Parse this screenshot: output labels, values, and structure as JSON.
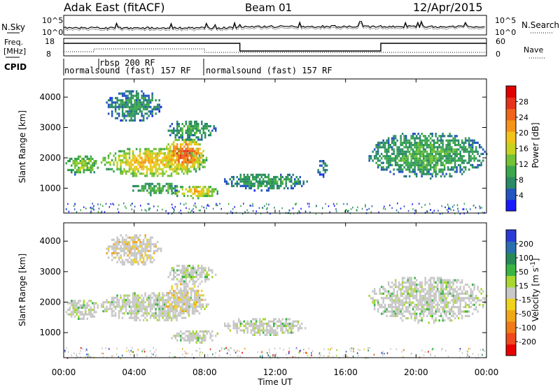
{
  "header": {
    "station": "Adak East (fitACF)",
    "beam": "Beam 01",
    "date": "12/Apr/2015"
  },
  "noise_panel": {
    "left_label": "N.Sky",
    "right_label": "N.Search",
    "tick_top": "10^5",
    "tick_bottom": "10^0"
  },
  "freq_panel": {
    "left_label_line1": "Freq.",
    "left_label_line2": "[MHz]",
    "right_label": "Nave",
    "left_ticks": [
      "18",
      "8"
    ],
    "right_ticks": [
      "60",
      "0"
    ]
  },
  "cpid_panel": {
    "label": "CPID",
    "entries": [
      {
        "text": "rbsp 200 RF",
        "start_hour": 1.5
      },
      {
        "text": "normalsound (fast) 157 RF",
        "start_hour": 0.0
      },
      {
        "text": "normalsound (fast) 157 RF",
        "start_hour": 7.8
      }
    ]
  },
  "chart_data": [
    {
      "type": "heatmap",
      "quantity": "Power",
      "ylabel": "Slant Range [km]",
      "xlabel": "Time UT",
      "ylim": [
        180,
        4600
      ],
      "yticks": [
        1000,
        2000,
        3000,
        4000
      ],
      "xlim": [
        0,
        24
      ],
      "colorbar": {
        "label": "Power [dB]",
        "range": [
          0,
          32
        ],
        "ticks": [
          "4",
          "8",
          "12",
          "16",
          "20",
          "24",
          "28"
        ],
        "colors": [
          "#1a1aff",
          "#2255c0",
          "#2a8a66",
          "#3aa74a",
          "#74c236",
          "#c6d21f",
          "#f2c41a",
          "#f59418",
          "#f0651c",
          "#e8311c",
          "#e00000"
        ]
      },
      "echo_regions": [
        {
          "t0": 0.0,
          "t1": 2.0,
          "r0": 1450,
          "r1": 2150,
          "level": 11
        },
        {
          "t0": 2.0,
          "t1": 8.2,
          "r0": 1400,
          "r1": 2400,
          "level": 16
        },
        {
          "t0": 5.6,
          "t1": 8.0,
          "r0": 1600,
          "r1": 2700,
          "level": 21
        },
        {
          "t0": 2.3,
          "t1": 5.5,
          "r0": 3200,
          "r1": 4300,
          "level": 6
        },
        {
          "t0": 5.8,
          "t1": 8.6,
          "r0": 2600,
          "r1": 3300,
          "level": 7
        },
        {
          "t0": 6.0,
          "t1": 8.8,
          "r0": 700,
          "r1": 1150,
          "level": 15
        },
        {
          "t0": 3.8,
          "t1": 6.5,
          "r0": 800,
          "r1": 1250,
          "level": 9
        },
        {
          "t0": 9.0,
          "t1": 13.8,
          "r0": 950,
          "r1": 1550,
          "level": 7
        },
        {
          "t0": 14.3,
          "t1": 15.0,
          "r0": 1400,
          "r1": 2000,
          "level": 5
        },
        {
          "t0": 17.2,
          "t1": 24.0,
          "r0": 1350,
          "r1": 2900,
          "level": 8
        }
      ]
    },
    {
      "type": "heatmap",
      "quantity": "Velocity",
      "ylabel": "Slant Range [km]",
      "xlabel": "Time UT",
      "ylim": [
        180,
        4600
      ],
      "yticks": [
        1000,
        2000,
        3000,
        4000
      ],
      "xlim": [
        0,
        24
      ],
      "xticks": [
        "00:00",
        "04:00",
        "08:00",
        "12:00",
        "16:00",
        "20:00",
        "00:00"
      ],
      "colorbar": {
        "label": "Velocity [m s^-1]",
        "ticks": [
          "200",
          "100",
          "50",
          "15",
          "-15",
          "-50",
          "-100",
          "-200"
        ],
        "colors": [
          "#2a3ad6",
          "#2c6fb0",
          "#278a56",
          "#3ab544",
          "#a8d830",
          "#c8c8c8",
          "#f0d21a",
          "#f0a818",
          "#f07a18",
          "#f0481c",
          "#e80000"
        ]
      },
      "echo_regions": [
        {
          "t0": 0.0,
          "t1": 2.0,
          "r0": 1450,
          "r1": 2150,
          "vel": 0
        },
        {
          "t0": 2.0,
          "t1": 8.2,
          "r0": 1400,
          "r1": 2400,
          "vel": 0
        },
        {
          "t0": 5.6,
          "t1": 8.0,
          "r0": 1600,
          "r1": 2700,
          "vel": -20
        },
        {
          "t0": 2.3,
          "t1": 5.5,
          "r0": 3200,
          "r1": 4300,
          "vel": -40
        },
        {
          "t0": 5.8,
          "t1": 8.6,
          "r0": 2600,
          "r1": 3300,
          "vel": 0
        },
        {
          "t0": 6.0,
          "t1": 8.8,
          "r0": 700,
          "r1": 1150,
          "vel": 0
        },
        {
          "t0": 9.0,
          "t1": 13.8,
          "r0": 950,
          "r1": 1550,
          "vel": 20
        },
        {
          "t0": 17.2,
          "t1": 24.0,
          "r0": 1350,
          "r1": 2900,
          "vel": 0
        }
      ]
    }
  ]
}
